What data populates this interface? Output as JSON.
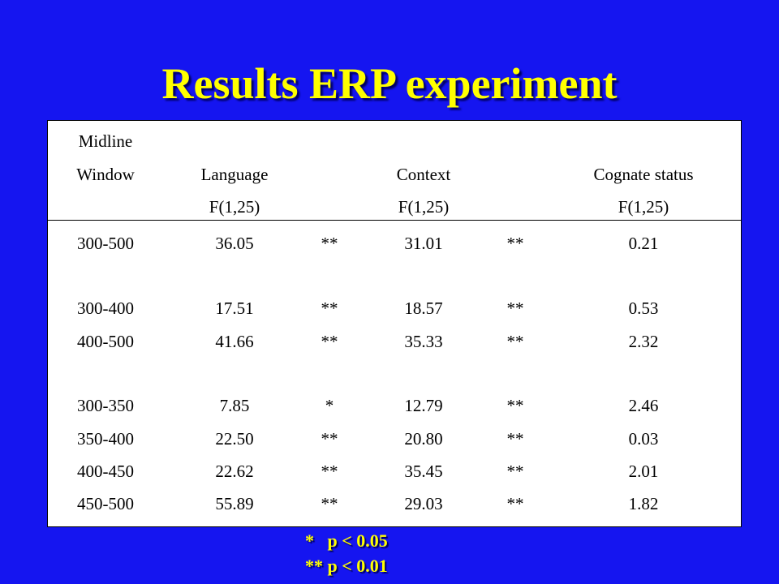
{
  "title": "Results ERP experiment",
  "table": {
    "header": {
      "row1": {
        "window": "Midline"
      },
      "row2": {
        "window": "Window",
        "language": "Language",
        "context": "Context",
        "cognate": "Cognate status"
      },
      "row3": {
        "language": "F(1,25)",
        "context": "F(1,25)",
        "cognate": "F(1,25)"
      }
    },
    "rows": [
      {
        "window": "300-500",
        "language": "36.05",
        "lang_sig": "**",
        "context": "31.01",
        "ctx_sig": "**",
        "cognate": "0.21"
      },
      {
        "window": "300-400",
        "language": "17.51",
        "lang_sig": "**",
        "context": "18.57",
        "ctx_sig": "**",
        "cognate": "0.53"
      },
      {
        "window": "400-500",
        "language": "41.66",
        "lang_sig": "**",
        "context": "35.33",
        "ctx_sig": "**",
        "cognate": "2.32"
      },
      {
        "window": "300-350",
        "language": "7.85",
        "lang_sig": "*",
        "context": "12.79",
        "ctx_sig": "**",
        "cognate": "2.46"
      },
      {
        "window": "350-400",
        "language": "22.50",
        "lang_sig": "**",
        "context": "20.80",
        "ctx_sig": "**",
        "cognate": "0.03"
      },
      {
        "window": "400-450",
        "language": "22.62",
        "lang_sig": "**",
        "context": "35.45",
        "ctx_sig": "**",
        "cognate": "2.01"
      },
      {
        "window": "450-500",
        "language": "55.89",
        "lang_sig": "**",
        "context": "29.03",
        "ctx_sig": "**",
        "cognate": "1.82"
      }
    ]
  },
  "footnotes": [
    "*   p < 0.05",
    "** p < 0.01"
  ]
}
